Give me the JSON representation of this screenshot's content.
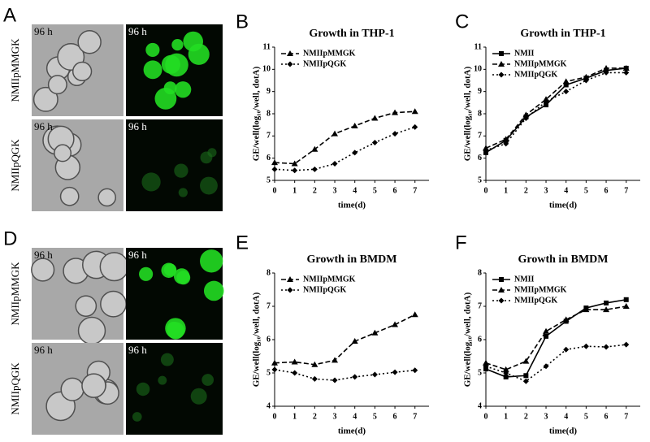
{
  "micrographs": [
    {
      "panel": "A",
      "rows": [
        {
          "label": "NMIIpMMGK",
          "times": [
            "96 h",
            "96 h"
          ]
        },
        {
          "label": "NMIIpQGK",
          "times": [
            "96 h",
            "96 h"
          ]
        }
      ]
    },
    {
      "panel": "D",
      "rows": [
        {
          "label": "NMIIpMMGK",
          "times": [
            "96 h",
            "96 h"
          ]
        },
        {
          "label": "NMIIpQGK",
          "times": [
            "96 h",
            "96 h"
          ]
        }
      ]
    }
  ],
  "chart_data": [
    {
      "type": "line",
      "panel": "B",
      "title": "Growth in THP-1",
      "x_label": "time(d)",
      "y_label": "GE/well(log₁₀/well, dotA)",
      "x": [
        0,
        1,
        2,
        3,
        4,
        5,
        6,
        7
      ],
      "xlim": [
        0,
        7.7
      ],
      "xticks": [
        0,
        1,
        2,
        3,
        4,
        5,
        6,
        7
      ],
      "ylim": [
        5,
        11
      ],
      "yticks": [
        5,
        6,
        7,
        8,
        9,
        10,
        11
      ],
      "legend": "upper-left",
      "series": [
        {
          "name": "NMIIpMMGK",
          "color": "#000000",
          "line_style": "dashed",
          "marker": "triangle",
          "values": [
            5.8,
            5.75,
            6.4,
            7.1,
            7.45,
            7.8,
            8.05,
            8.1
          ]
        },
        {
          "name": "NMIIpQGK",
          "color": "#000000",
          "line_style": "dotted",
          "marker": "diamond",
          "values": [
            5.5,
            5.45,
            5.5,
            5.75,
            6.25,
            6.7,
            7.1,
            7.4
          ]
        }
      ]
    },
    {
      "type": "line",
      "panel": "C",
      "title": "Growth in THP-1",
      "x_label": "time(d)",
      "y_label": "GE/well(log₁₀/well, dotA)",
      "x": [
        0,
        1,
        2,
        3,
        4,
        5,
        6,
        7
      ],
      "xlim": [
        0,
        7.7
      ],
      "xticks": [
        0,
        1,
        2,
        3,
        4,
        5,
        6,
        7
      ],
      "ylim": [
        5,
        11
      ],
      "yticks": [
        5,
        6,
        7,
        8,
        9,
        10,
        11
      ],
      "legend": "upper-left",
      "series": [
        {
          "name": "NMII",
          "color": "#000000",
          "line_style": "solid",
          "marker": "square",
          "values": [
            6.25,
            6.8,
            7.85,
            8.4,
            9.3,
            9.6,
            9.95,
            10.05
          ]
        },
        {
          "name": "NMIIpMMGK",
          "color": "#000000",
          "line_style": "dashed",
          "marker": "triangle",
          "values": [
            6.45,
            6.85,
            7.95,
            8.65,
            9.45,
            9.65,
            10.05,
            10.05
          ]
        },
        {
          "name": "NMIIpQGK",
          "color": "#000000",
          "line_style": "dotted",
          "marker": "diamond",
          "values": [
            6.35,
            6.65,
            7.8,
            8.55,
            9.0,
            9.5,
            9.85,
            9.85
          ]
        }
      ]
    },
    {
      "type": "line",
      "panel": "E",
      "title": "Growth in BMDM",
      "x_label": "time(d)",
      "y_label": "GE/well(log₁₀/well, dotA)",
      "x": [
        0,
        1,
        2,
        3,
        4,
        5,
        6,
        7
      ],
      "xlim": [
        0,
        7.7
      ],
      "xticks": [
        0,
        1,
        2,
        3,
        4,
        5,
        6,
        7
      ],
      "ylim": [
        4,
        8
      ],
      "yticks": [
        4,
        5,
        6,
        7,
        8
      ],
      "legend": "upper-left",
      "series": [
        {
          "name": "NMIIpMMGK",
          "color": "#000000",
          "line_style": "dashed",
          "marker": "triangle",
          "values": [
            5.3,
            5.33,
            5.25,
            5.38,
            5.95,
            6.2,
            6.45,
            6.75
          ]
        },
        {
          "name": "NMIIpQGK",
          "color": "#000000",
          "line_style": "dotted",
          "marker": "diamond",
          "values": [
            5.1,
            5.0,
            4.82,
            4.78,
            4.88,
            4.95,
            5.02,
            5.08
          ]
        }
      ]
    },
    {
      "type": "line",
      "panel": "F",
      "title": "Growth in BMDM",
      "x_label": "time(d)",
      "y_label": "GE/well(log₁₀/well, dotA)",
      "x": [
        0,
        1,
        2,
        3,
        4,
        5,
        6,
        7
      ],
      "xlim": [
        0,
        7.7
      ],
      "xticks": [
        0,
        1,
        2,
        3,
        4,
        5,
        6,
        7
      ],
      "ylim": [
        4,
        8
      ],
      "yticks": [
        4,
        5,
        6,
        7,
        8
      ],
      "legend": "upper-left",
      "series": [
        {
          "name": "NMII",
          "color": "#000000",
          "line_style": "solid",
          "marker": "square",
          "values": [
            5.12,
            4.88,
            4.92,
            6.1,
            6.55,
            6.95,
            7.1,
            7.2
          ]
        },
        {
          "name": "NMIIpMMGK",
          "color": "#000000",
          "line_style": "dashed",
          "marker": "triangle",
          "values": [
            5.3,
            5.1,
            5.35,
            6.25,
            6.6,
            6.9,
            6.9,
            7.0
          ]
        },
        {
          "name": "NMIIpQGK",
          "color": "#000000",
          "line_style": "dotted",
          "marker": "diamond",
          "values": [
            5.2,
            5.0,
            4.75,
            5.2,
            5.7,
            5.8,
            5.78,
            5.85
          ]
        }
      ]
    }
  ]
}
